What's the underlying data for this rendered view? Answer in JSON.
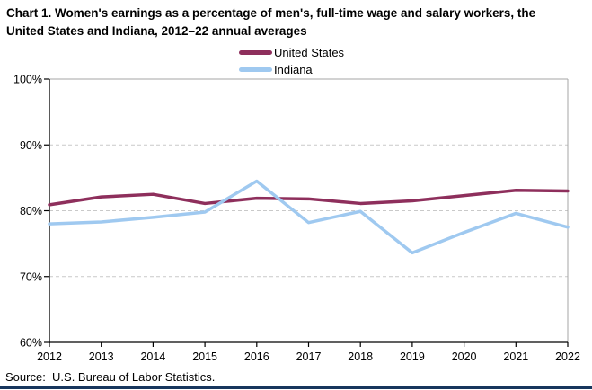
{
  "title": "Chart 1. Women's earnings as a percentage of men's, full-time wage and salary workers, the United States and Indiana, 2012–22 annual averages",
  "source": "Source:  U.S. Bureau of Labor Statistics.",
  "legend": {
    "position": "top-center",
    "items": [
      {
        "label": "United States",
        "color": "#8E2F5C"
      },
      {
        "label": "Indiana",
        "color": "#9FC9F0"
      }
    ]
  },
  "chart_data": {
    "type": "line",
    "title": "Chart 1. Women's earnings as a percentage of men's, full-time wage and salary workers, the United States and Indiana, 2012–22 annual averages",
    "categories": [
      "2012",
      "2013",
      "2014",
      "2015",
      "2016",
      "2017",
      "2018",
      "2019",
      "2020",
      "2021",
      "2022"
    ],
    "series": [
      {
        "name": "United States",
        "color": "#8E2F5C",
        "values": [
          80.9,
          82.1,
          82.5,
          81.1,
          81.9,
          81.8,
          81.1,
          81.5,
          82.3,
          83.1,
          83.0
        ]
      },
      {
        "name": "Indiana",
        "color": "#9FC9F0",
        "values": [
          78.0,
          78.3,
          79.0,
          79.8,
          84.5,
          78.2,
          79.9,
          73.6,
          76.7,
          79.6,
          77.5
        ]
      }
    ],
    "xlabel": "",
    "ylabel": "",
    "ylim": [
      60,
      100
    ],
    "ytick_step": 10,
    "ytick_suffix": "%",
    "grid": "horizontal-dashed",
    "legend_position": "top-center"
  },
  "colors": {
    "axis": "#000000",
    "plot_border": "#a6a6a6",
    "gridline": "#c9c9c9",
    "bottom_rule": "#17365D"
  }
}
